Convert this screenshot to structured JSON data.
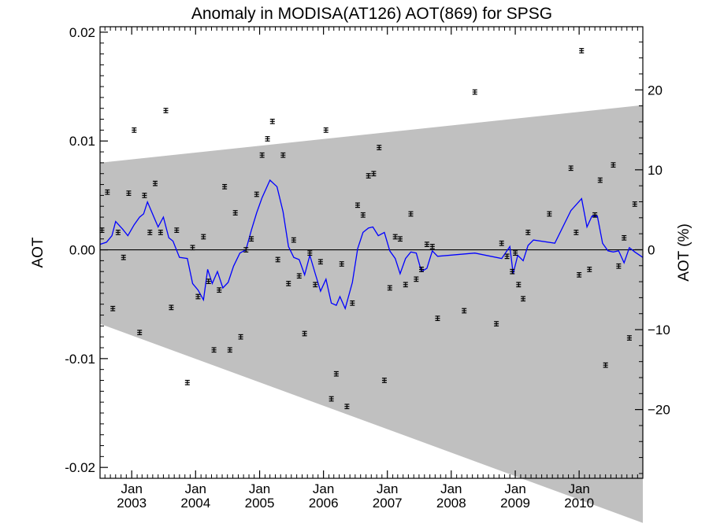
{
  "chart_data": {
    "type": "scatter",
    "title": "Anomaly in MODISA(AT126) AOT(869) for SPSG",
    "ylabel_left": "AOT",
    "ylabel_right": "AOT (%)",
    "ylim": [
      -0.021,
      0.0205
    ],
    "ylim_right_percent": [
      -28.6,
      27.9
    ],
    "xlim": [
      "2002-07-04",
      "2010-12-31"
    ],
    "grid": false,
    "zero_line": true,
    "yticks_left": [
      {
        "value": 0.02,
        "label": "0.02"
      },
      {
        "value": 0.01,
        "label": "0.01"
      },
      {
        "value": 0.0,
        "label": "0.00"
      },
      {
        "value": -0.01,
        "label": "-0.01"
      },
      {
        "value": -0.02,
        "label": "-0.02"
      }
    ],
    "yticks_right": [
      {
        "value": 20,
        "label": "20"
      },
      {
        "value": 10,
        "label": "10"
      },
      {
        "value": 0,
        "label": "0"
      },
      {
        "value": -10,
        "label": "−10"
      },
      {
        "value": -20,
        "label": "−20"
      }
    ],
    "xticks": [
      {
        "date": "2003-01-01",
        "month": "Jan",
        "year": "2003"
      },
      {
        "date": "2004-01-01",
        "month": "Jan",
        "year": "2004"
      },
      {
        "date": "2005-01-01",
        "month": "Jan",
        "year": "2005"
      },
      {
        "date": "2006-01-01",
        "month": "Jan",
        "year": "2006"
      },
      {
        "date": "2007-01-01",
        "month": "Jan",
        "year": "2007"
      },
      {
        "date": "2008-01-01",
        "month": "Jan",
        "year": "2008"
      },
      {
        "date": "2009-01-01",
        "month": "Jan",
        "year": "2009"
      },
      {
        "date": "2010-01-01",
        "month": "Jan",
        "year": "2010"
      }
    ],
    "band": {
      "color": "#c0c0c0",
      "upper": [
        {
          "x": "2002-07-04",
          "y": 0.008
        },
        {
          "x": "2010-12-31",
          "y": 0.0133
        }
      ],
      "lower": [
        {
          "x": "2002-07-04",
          "y": -0.0068
        },
        {
          "x": "2010-12-31",
          "y": -0.0251
        }
      ]
    },
    "series": [
      {
        "kind": "monthly-points-with-errorbars",
        "color": "#000000",
        "error": 0.0002,
        "points": [
          {
            "x": "2002-07-15",
            "y": 0.0018
          },
          {
            "x": "2002-08-15",
            "y": 0.0053
          },
          {
            "x": "2002-09-15",
            "y": -0.0054
          },
          {
            "x": "2002-10-15",
            "y": 0.0016
          },
          {
            "x": "2002-11-15",
            "y": -0.0007
          },
          {
            "x": "2002-12-15",
            "y": 0.0052
          },
          {
            "x": "2003-01-15",
            "y": 0.011
          },
          {
            "x": "2003-02-15",
            "y": -0.0076
          },
          {
            "x": "2003-03-15",
            "y": 0.005
          },
          {
            "x": "2003-04-15",
            "y": 0.0016
          },
          {
            "x": "2003-05-15",
            "y": 0.0061
          },
          {
            "x": "2003-06-15",
            "y": 0.0016
          },
          {
            "x": "2003-07-15",
            "y": 0.0128
          },
          {
            "x": "2003-08-15",
            "y": -0.0053
          },
          {
            "x": "2003-09-15",
            "y": 0.0018
          },
          {
            "x": "2003-11-15",
            "y": -0.0122
          },
          {
            "x": "2003-12-15",
            "y": 0.0002
          },
          {
            "x": "2004-01-15",
            "y": -0.0043
          },
          {
            "x": "2004-02-15",
            "y": 0.0012
          },
          {
            "x": "2004-03-15",
            "y": -0.0029
          },
          {
            "x": "2004-04-15",
            "y": -0.0092
          },
          {
            "x": "2004-05-15",
            "y": -0.0037
          },
          {
            "x": "2004-06-15",
            "y": 0.0058
          },
          {
            "x": "2004-07-15",
            "y": -0.0092
          },
          {
            "x": "2004-08-15",
            "y": 0.0034
          },
          {
            "x": "2004-09-15",
            "y": -0.008
          },
          {
            "x": "2004-10-15",
            "y": 0.0
          },
          {
            "x": "2004-11-15",
            "y": 0.001
          },
          {
            "x": "2004-12-15",
            "y": 0.0051
          },
          {
            "x": "2005-01-15",
            "y": 0.0087
          },
          {
            "x": "2005-02-15",
            "y": 0.0102
          },
          {
            "x": "2005-03-15",
            "y": 0.0118
          },
          {
            "x": "2005-04-15",
            "y": -0.0009
          },
          {
            "x": "2005-05-15",
            "y": 0.0087
          },
          {
            "x": "2005-06-15",
            "y": -0.0031
          },
          {
            "x": "2005-07-15",
            "y": 0.0009
          },
          {
            "x": "2005-08-15",
            "y": -0.0024
          },
          {
            "x": "2005-09-15",
            "y": -0.0077
          },
          {
            "x": "2005-10-15",
            "y": -0.0003
          },
          {
            "x": "2005-11-15",
            "y": -0.0032
          },
          {
            "x": "2005-12-15",
            "y": -0.0011
          },
          {
            "x": "2006-01-15",
            "y": 0.011
          },
          {
            "x": "2006-02-15",
            "y": -0.0137
          },
          {
            "x": "2006-03-15",
            "y": -0.0114
          },
          {
            "x": "2006-04-15",
            "y": -0.0013
          },
          {
            "x": "2006-05-15",
            "y": -0.0144
          },
          {
            "x": "2006-06-15",
            "y": -0.0049
          },
          {
            "x": "2006-07-15",
            "y": 0.0041
          },
          {
            "x": "2006-08-15",
            "y": 0.0032
          },
          {
            "x": "2006-09-15",
            "y": 0.0068
          },
          {
            "x": "2006-10-15",
            "y": 0.007
          },
          {
            "x": "2006-11-15",
            "y": 0.0094
          },
          {
            "x": "2006-12-15",
            "y": -0.012
          },
          {
            "x": "2007-01-15",
            "y": -0.0035
          },
          {
            "x": "2007-02-15",
            "y": 0.0012
          },
          {
            "x": "2007-03-15",
            "y": 0.001
          },
          {
            "x": "2007-04-15",
            "y": -0.0032
          },
          {
            "x": "2007-05-15",
            "y": 0.0033
          },
          {
            "x": "2007-06-15",
            "y": -0.0027
          },
          {
            "x": "2007-07-15",
            "y": -0.0018
          },
          {
            "x": "2007-08-15",
            "y": 0.0005
          },
          {
            "x": "2007-09-15",
            "y": 0.0003
          },
          {
            "x": "2007-10-15",
            "y": -0.0063
          },
          {
            "x": "2008-03-15",
            "y": -0.0056
          },
          {
            "x": "2008-05-15",
            "y": 0.0145
          },
          {
            "x": "2008-09-15",
            "y": -0.0068
          },
          {
            "x": "2008-10-15",
            "y": 0.0006
          },
          {
            "x": "2008-11-15",
            "y": -0.0006
          },
          {
            "x": "2008-12-15",
            "y": -0.002
          },
          {
            "x": "2009-01-01",
            "y": -0.0003
          },
          {
            "x": "2009-01-20",
            "y": -0.0032
          },
          {
            "x": "2009-02-15",
            "y": -0.0045
          },
          {
            "x": "2009-03-15",
            "y": 0.0016
          },
          {
            "x": "2009-07-15",
            "y": 0.0033
          },
          {
            "x": "2009-11-15",
            "y": 0.0075
          },
          {
            "x": "2009-12-15",
            "y": 0.0016
          },
          {
            "x": "2010-01-01",
            "y": -0.0023
          },
          {
            "x": "2010-01-15",
            "y": 0.0183
          },
          {
            "x": "2010-03-01",
            "y": -0.0018
          },
          {
            "x": "2010-04-01",
            "y": 0.0032
          },
          {
            "x": "2010-05-01",
            "y": 0.0064
          },
          {
            "x": "2010-06-01",
            "y": -0.0106
          },
          {
            "x": "2010-07-15",
            "y": 0.0078
          },
          {
            "x": "2010-08-15",
            "y": -0.0015
          },
          {
            "x": "2010-09-15",
            "y": 0.0011
          },
          {
            "x": "2010-10-15",
            "y": -0.0081
          },
          {
            "x": "2010-11-15",
            "y": 0.0042
          }
        ]
      },
      {
        "kind": "smoothed-line",
        "color": "#0000ff",
        "points": [
          {
            "x": "2002-07-04",
            "y": 0.0005
          },
          {
            "x": "2002-08-10",
            "y": 0.0007
          },
          {
            "x": "2002-09-10",
            "y": 0.0013
          },
          {
            "x": "2002-10-01",
            "y": 0.0026
          },
          {
            "x": "2002-11-10",
            "y": 0.0019
          },
          {
            "x": "2002-12-10",
            "y": 0.0013
          },
          {
            "x": "2003-01-15",
            "y": 0.0023
          },
          {
            "x": "2003-02-15",
            "y": 0.003
          },
          {
            "x": "2003-03-10",
            "y": 0.0033
          },
          {
            "x": "2003-04-01",
            "y": 0.0044
          },
          {
            "x": "2003-06-01",
            "y": 0.0021
          },
          {
            "x": "2003-07-01",
            "y": 0.003
          },
          {
            "x": "2003-08-01",
            "y": 0.0011
          },
          {
            "x": "2003-08-25",
            "y": 0.0008
          },
          {
            "x": "2003-10-01",
            "y": -0.0007
          },
          {
            "x": "2003-11-15",
            "y": -0.0008
          },
          {
            "x": "2003-12-15",
            "y": -0.0031
          },
          {
            "x": "2004-01-15",
            "y": -0.0037
          },
          {
            "x": "2004-02-15",
            "y": -0.0046
          },
          {
            "x": "2004-03-10",
            "y": -0.0018
          },
          {
            "x": "2004-04-05",
            "y": -0.0031
          },
          {
            "x": "2004-05-05",
            "y": -0.002
          },
          {
            "x": "2004-06-05",
            "y": -0.0035
          },
          {
            "x": "2004-07-05",
            "y": -0.003
          },
          {
            "x": "2004-08-05",
            "y": -0.0015
          },
          {
            "x": "2004-09-10",
            "y": -0.0003
          },
          {
            "x": "2004-10-15",
            "y": 0.0
          },
          {
            "x": "2004-11-15",
            "y": 0.0018
          },
          {
            "x": "2004-12-15",
            "y": 0.0034
          },
          {
            "x": "2005-01-15",
            "y": 0.0048
          },
          {
            "x": "2005-03-01",
            "y": 0.0064
          },
          {
            "x": "2005-04-10",
            "y": 0.0058
          },
          {
            "x": "2005-05-15",
            "y": 0.0035
          },
          {
            "x": "2005-06-15",
            "y": 0.0003
          },
          {
            "x": "2005-07-15",
            "y": -0.0007
          },
          {
            "x": "2005-08-15",
            "y": -0.0009
          },
          {
            "x": "2005-09-15",
            "y": -0.0023
          },
          {
            "x": "2005-10-15",
            "y": -0.0005
          },
          {
            "x": "2005-11-15",
            "y": -0.0022
          },
          {
            "x": "2005-12-15",
            "y": -0.0038
          },
          {
            "x": "2006-01-15",
            "y": -0.0027
          },
          {
            "x": "2006-02-15",
            "y": -0.0049
          },
          {
            "x": "2006-03-15",
            "y": -0.0051
          },
          {
            "x": "2006-04-05",
            "y": -0.0043
          },
          {
            "x": "2006-05-05",
            "y": -0.0054
          },
          {
            "x": "2006-06-15",
            "y": -0.003
          },
          {
            "x": "2006-07-15",
            "y": 0.0001
          },
          {
            "x": "2006-08-15",
            "y": 0.0016
          },
          {
            "x": "2006-09-15",
            "y": 0.002
          },
          {
            "x": "2006-10-10",
            "y": 0.0021
          },
          {
            "x": "2006-11-10",
            "y": 0.0013
          },
          {
            "x": "2006-12-15",
            "y": 0.0016
          },
          {
            "x": "2007-01-15",
            "y": -0.0001
          },
          {
            "x": "2007-02-15",
            "y": -0.0008
          },
          {
            "x": "2007-03-15",
            "y": -0.0022
          },
          {
            "x": "2007-04-15",
            "y": -0.0008
          },
          {
            "x": "2007-05-15",
            "y": -0.0002
          },
          {
            "x": "2007-06-15",
            "y": -0.0003
          },
          {
            "x": "2007-07-15",
            "y": -0.002
          },
          {
            "x": "2007-08-15",
            "y": -0.0017
          },
          {
            "x": "2007-09-15",
            "y": -0.0001
          },
          {
            "x": "2007-10-15",
            "y": -0.0006
          },
          {
            "x": "2008-05-15",
            "y": -0.0003
          },
          {
            "x": "2008-10-15",
            "y": -0.0008
          },
          {
            "x": "2008-12-01",
            "y": 0.0003
          },
          {
            "x": "2008-12-20",
            "y": -0.0022
          },
          {
            "x": "2009-01-15",
            "y": -0.0005
          },
          {
            "x": "2009-02-15",
            "y": -0.001
          },
          {
            "x": "2009-03-15",
            "y": 0.0004
          },
          {
            "x": "2009-04-15",
            "y": 0.0009
          },
          {
            "x": "2009-08-15",
            "y": 0.0006
          },
          {
            "x": "2009-11-15",
            "y": 0.0036
          },
          {
            "x": "2010-01-15",
            "y": 0.0047
          },
          {
            "x": "2010-02-15",
            "y": 0.0021
          },
          {
            "x": "2010-03-15",
            "y": 0.0031
          },
          {
            "x": "2010-04-15",
            "y": 0.0031
          },
          {
            "x": "2010-05-15",
            "y": 0.0006
          },
          {
            "x": "2010-06-15",
            "y": -0.0001
          },
          {
            "x": "2010-07-15",
            "y": -0.0002
          },
          {
            "x": "2010-08-15",
            "y": -0.0001
          },
          {
            "x": "2010-09-15",
            "y": -0.0012
          },
          {
            "x": "2010-10-15",
            "y": 0.0002
          },
          {
            "x": "2010-11-15",
            "y": -0.0002
          },
          {
            "x": "2010-12-31",
            "y": -0.0007
          }
        ]
      }
    ]
  }
}
